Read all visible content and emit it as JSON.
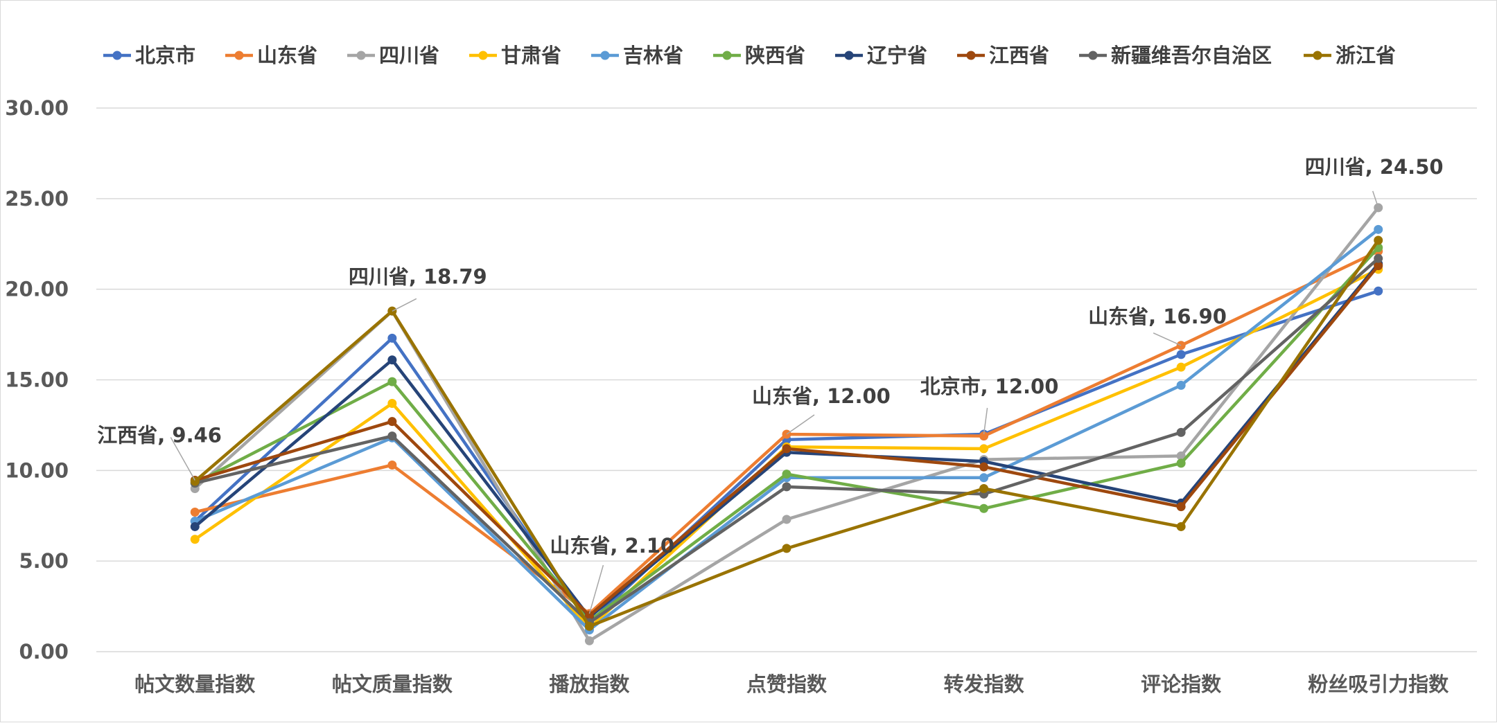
{
  "chart_data": {
    "type": "line",
    "categories": [
      "帖文数量指数",
      "帖文质量指数",
      "播放指数",
      "点赞指数",
      "转发指数",
      "评论指数",
      "粉丝吸引力指数"
    ],
    "ylim": [
      0,
      30
    ],
    "yticks": [
      "0.00",
      "5.00",
      "10.00",
      "15.00",
      "20.00",
      "25.00",
      "30.00"
    ],
    "grid": true,
    "legend_position": "top",
    "series": [
      {
        "name": "北京市",
        "color": "#4472C4",
        "values": [
          7.2,
          17.3,
          1.6,
          11.7,
          12.0,
          16.4,
          19.9
        ]
      },
      {
        "name": "山东省",
        "color": "#ED7D31",
        "values": [
          7.7,
          10.3,
          2.1,
          12.0,
          11.9,
          16.9,
          22.1
        ]
      },
      {
        "name": "四川省",
        "color": "#A5A5A5",
        "values": [
          9.0,
          18.79,
          0.6,
          7.3,
          10.6,
          10.8,
          24.5
        ]
      },
      {
        "name": "甘肃省",
        "color": "#FFC000",
        "values": [
          6.2,
          13.7,
          1.3,
          11.3,
          11.2,
          15.7,
          21.1
        ]
      },
      {
        "name": "吉林省",
        "color": "#5B9BD5",
        "values": [
          7.2,
          11.8,
          1.2,
          9.6,
          9.6,
          14.7,
          23.3
        ]
      },
      {
        "name": "陕西省",
        "color": "#70AD47",
        "values": [
          9.3,
          14.9,
          1.7,
          9.8,
          7.9,
          10.4,
          22.3
        ]
      },
      {
        "name": "辽宁省",
        "color": "#264478",
        "values": [
          6.9,
          16.1,
          1.9,
          11.0,
          10.5,
          8.2,
          21.4
        ]
      },
      {
        "name": "江西省",
        "color": "#9E480E",
        "values": [
          9.46,
          12.7,
          2.0,
          11.2,
          10.2,
          8.0,
          21.3
        ]
      },
      {
        "name": "新疆维吾尔自治区",
        "color": "#636363",
        "values": [
          9.3,
          11.9,
          1.6,
          9.1,
          8.7,
          12.1,
          21.7
        ]
      },
      {
        "name": "浙江省",
        "color": "#997300",
        "values": [
          9.4,
          18.8,
          1.4,
          5.7,
          9.0,
          6.9,
          22.7
        ]
      }
    ],
    "annotations": [
      {
        "text": "江西省, 9.46",
        "series": "江西省",
        "category": "帖文数量指数",
        "value": 9.46
      },
      {
        "text": "四川省, 18.79",
        "series": "四川省",
        "category": "帖文质量指数",
        "value": 18.79
      },
      {
        "text": "山东省, 2.10",
        "series": "山东省",
        "category": "播放指数",
        "value": 2.1
      },
      {
        "text": "山东省, 12.00",
        "series": "山东省",
        "category": "点赞指数",
        "value": 12.0
      },
      {
        "text": "北京市, 12.00",
        "series": "北京市",
        "category": "转发指数",
        "value": 12.0
      },
      {
        "text": "山东省, 16.90",
        "series": "山东省",
        "category": "评论指数",
        "value": 16.9
      },
      {
        "text": "四川省, 24.50",
        "series": "四川省",
        "category": "粉丝吸引力指数",
        "value": 24.5
      }
    ]
  }
}
